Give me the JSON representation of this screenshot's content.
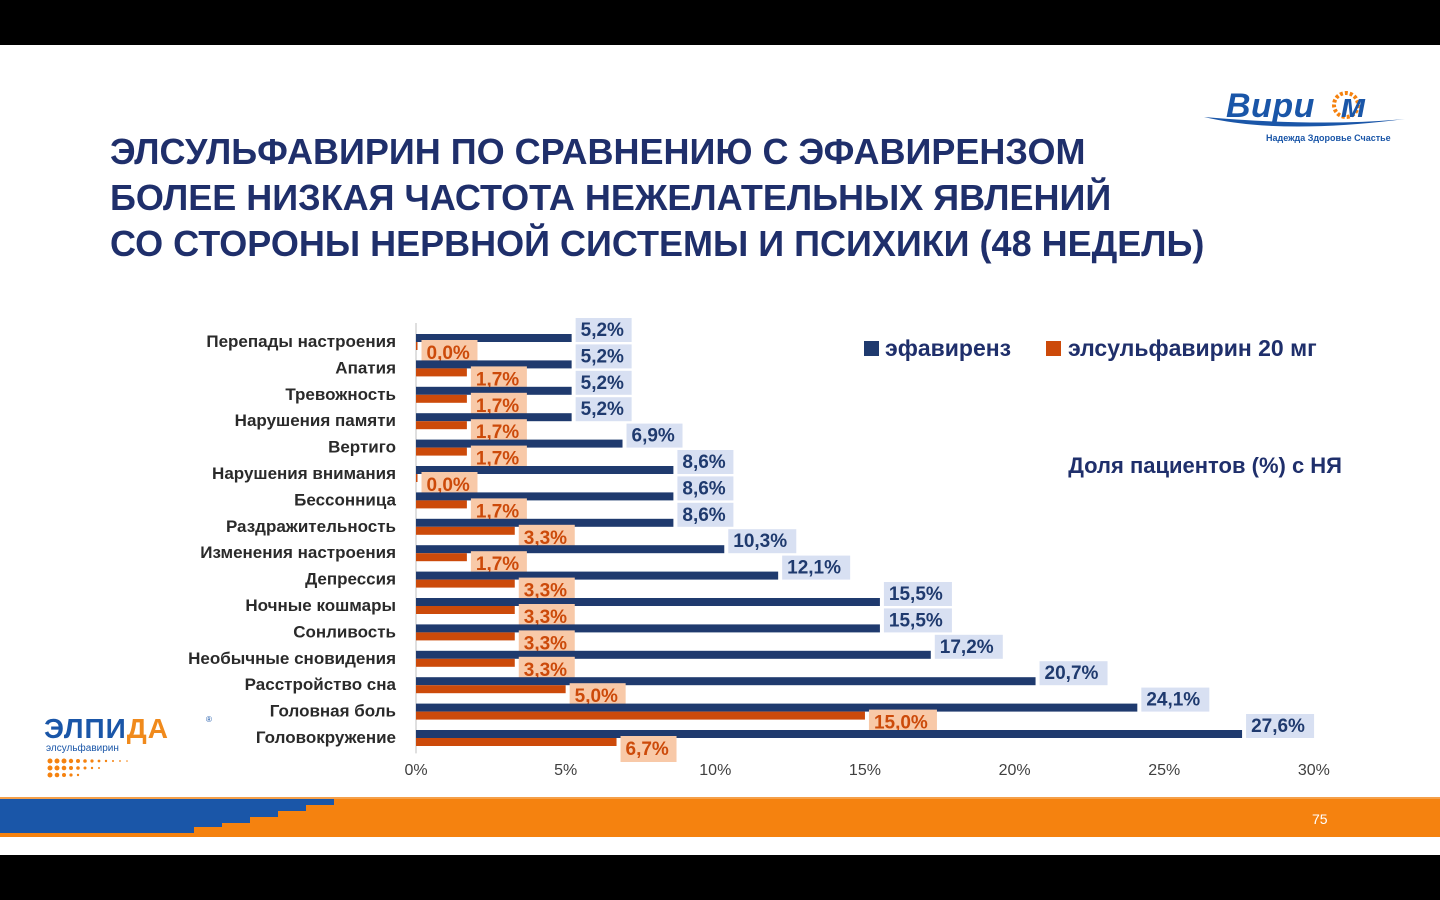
{
  "slide": {
    "title_lines": [
      "ЭЛСУЛЬФАВИРИН ПО СРАВНЕНИЮ С ЭФАВИРЕНЗОМ",
      "БОЛЕЕ НИЗКАЯ ЧАСТОТА НЕЖЕЛАТЕЛЬНЫХ ЯВЛЕНИЙ",
      "СО СТОРОНЫ НЕРВНОЙ СИСТЕМЫ И ПСИХИКИ (48 НЕДЕЛЬ)"
    ],
    "page_number": "75",
    "logo_virium": {
      "word": "Вири",
      "word_end": "м",
      "slogan": "Надежда Здоровье Счастье"
    },
    "logo_elpida": {
      "word_main": "ЭЛПИ",
      "word_accent": "ДА",
      "registered": "®",
      "subtitle": "элсульфавирин"
    }
  },
  "colors": {
    "efavirenz": "#1f3a6e",
    "elsulfavirine": "#cc4a0a",
    "efavirenz_label_bg": "#d8e0f2",
    "elsulfavirine_label_bg": "#f8c9a8",
    "title": "#1f2f6b",
    "footer_blue": "#1a56a8",
    "footer_orange": "#f5820f"
  },
  "chart_data": {
    "type": "bar",
    "orientation": "horizontal",
    "categories": [
      "Перепады настроения",
      "Апатия",
      "Тревожность",
      "Нарушения памяти",
      "Вертиго",
      "Нарушения внимания",
      "Бессонница",
      "Раздражительность",
      "Изменения настроения",
      "Депрессия",
      "Ночные кошмары",
      "Сонливость",
      "Необычные сновидения",
      "Расстройство сна",
      "Головная боль",
      "Головокружение"
    ],
    "series": [
      {
        "name": "эфавиренз",
        "values": [
          5.2,
          5.2,
          5.2,
          5.2,
          6.9,
          8.6,
          8.6,
          8.6,
          10.3,
          12.1,
          15.5,
          15.5,
          17.2,
          20.7,
          24.1,
          27.6
        ],
        "labels": [
          "5,2%",
          "5,2%",
          "5,2%",
          "5,2%",
          "6,9%",
          "8,6%",
          "8,6%",
          "8,6%",
          "10,3%",
          "12,1%",
          "15,5%",
          "15,5%",
          "17,2%",
          "20,7%",
          "24,1%",
          "27,6%"
        ]
      },
      {
        "name": "элсульфавирин 20 мг",
        "values": [
          0.0,
          1.7,
          1.7,
          1.7,
          1.7,
          0.0,
          1.7,
          3.3,
          1.7,
          3.3,
          3.3,
          3.3,
          3.3,
          5.0,
          15.0,
          6.7
        ],
        "labels": [
          "0,0%",
          "1,7%",
          "1,7%",
          "1,7%",
          "1,7%",
          "0,0%",
          "1,7%",
          "3,3%",
          "1,7%",
          "3,3%",
          "3,3%",
          "3,3%",
          "3,3%",
          "5,0%",
          "15,0%",
          "6,7%"
        ]
      }
    ],
    "x_ticks": [
      "0%",
      "5%",
      "10%",
      "15%",
      "20%",
      "25%",
      "30%"
    ],
    "xlim": [
      0,
      30
    ],
    "annotation": "Доля пациентов (%) с НЯ",
    "legend_position": "top-right",
    "grid": false
  }
}
